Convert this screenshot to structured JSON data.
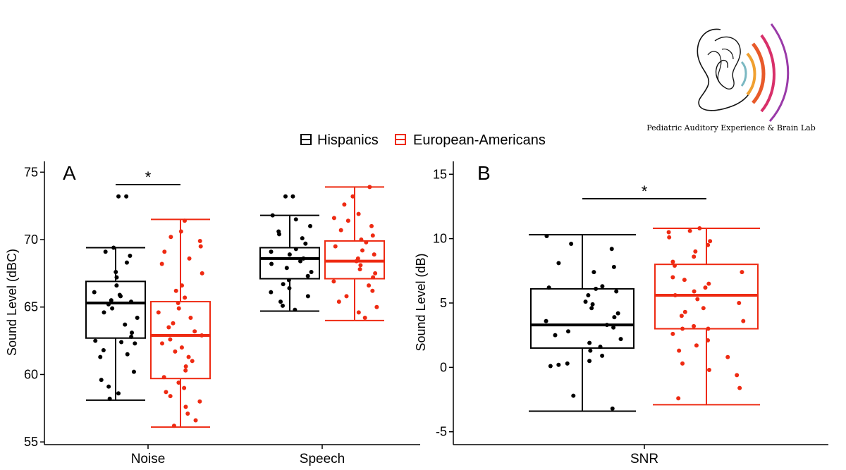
{
  "logo": {
    "lab_name": "Pediatric Auditory Experience & Brain Lab",
    "arc_colors": [
      "#7ab8c2",
      "#f0a030",
      "#e85a2a",
      "#d8306a",
      "#9a3aa8"
    ]
  },
  "legend": {
    "position": "top-center",
    "items": [
      {
        "label": "Hispanics",
        "color": "#000000"
      },
      {
        "label": "European-Americans",
        "color": "#ee2a12"
      }
    ]
  },
  "chart_data": [
    {
      "type": "box",
      "panel_label": "A",
      "ylabel": "Sound Level (dBC)",
      "ylim": [
        54.8,
        75.8
      ],
      "yticks": [
        55,
        60,
        65,
        70,
        75
      ],
      "categories": [
        "Noise",
        "Speech"
      ],
      "grid": false,
      "significance": [
        {
          "category": "Noise",
          "label": "*"
        }
      ],
      "series": [
        {
          "name": "Hispanics",
          "color": "#000000",
          "boxes": [
            {
              "whisker_low": 58.1,
              "q1": 62.7,
              "median": 65.3,
              "q3": 66.9,
              "whisker_high": 69.4,
              "points": [
                73.2,
                73.2,
                69.4,
                69.1,
                68.8,
                68.3,
                67.6,
                67.2,
                66.6,
                66.1,
                65.9,
                65.8,
                65.5,
                65.4,
                65.2,
                64.9,
                64.6,
                64.2,
                63.7,
                63.1,
                62.8,
                62.5,
                62.4,
                62.3,
                61.8,
                61.5,
                61.3,
                60.2,
                59.6,
                59.1,
                58.6,
                58.2
              ]
            },
            {
              "whisker_low": 64.7,
              "q1": 67.1,
              "median": 68.6,
              "q3": 69.4,
              "whisker_high": 71.8,
              "points": [
                73.2,
                73.2,
                71.8,
                71.5,
                71.0,
                70.6,
                70.4,
                70.1,
                69.7,
                69.3,
                69.1,
                68.9,
                68.6,
                68.4,
                68.2,
                67.9,
                67.6,
                67.3,
                67.0,
                66.7,
                66.4,
                66.1,
                65.8,
                65.4,
                65.1,
                64.8
              ]
            }
          ]
        },
        {
          "name": "European-Americans",
          "color": "#ee2a12",
          "boxes": [
            {
              "whisker_low": 56.1,
              "q1": 59.7,
              "median": 62.9,
              "q3": 65.4,
              "whisker_high": 71.5,
              "points": [
                71.4,
                70.6,
                70.2,
                69.9,
                69.5,
                69.1,
                68.6,
                68.2,
                67.5,
                66.6,
                66.2,
                65.7,
                65.3,
                64.9,
                64.6,
                64.2,
                63.8,
                63.5,
                63.2,
                62.9,
                62.6,
                62.3,
                62.0,
                61.7,
                61.3,
                61.0,
                60.6,
                60.3,
                59.8,
                59.4,
                59.0,
                58.7,
                58.4,
                58.0,
                57.6,
                57.1,
                56.6,
                56.2
              ]
            },
            {
              "whisker_low": 64.0,
              "q1": 67.1,
              "median": 68.4,
              "q3": 69.9,
              "whisker_high": 73.9,
              "points": [
                73.9,
                73.2,
                72.6,
                71.9,
                71.6,
                71.4,
                71.0,
                70.7,
                70.3,
                70.0,
                69.8,
                69.5,
                69.2,
                68.9,
                68.6,
                68.4,
                68.1,
                67.8,
                67.5,
                67.2,
                66.9,
                66.6,
                66.2,
                65.8,
                65.4,
                65.0,
                64.6,
                64.2
              ]
            }
          ]
        }
      ]
    },
    {
      "type": "box",
      "panel_label": "B",
      "ylabel": "Sound Level (dB)",
      "ylim": [
        -6,
        16
      ],
      "yticks": [
        -5,
        0,
        5,
        10,
        15
      ],
      "categories": [
        "SNR"
      ],
      "grid": false,
      "significance": [
        {
          "category": "SNR",
          "label": "*"
        }
      ],
      "series": [
        {
          "name": "Hispanics",
          "color": "#000000",
          "boxes": [
            {
              "whisker_low": -3.4,
              "q1": 1.5,
              "median": 3.3,
              "q3": 6.1,
              "whisker_high": 10.3,
              "points": [
                10.2,
                9.6,
                9.2,
                8.1,
                7.8,
                7.4,
                6.3,
                6.2,
                6.1,
                5.9,
                5.6,
                5.1,
                4.9,
                4.6,
                4.2,
                3.9,
                3.6,
                3.3,
                3.1,
                2.8,
                2.5,
                2.2,
                1.9,
                1.6,
                1.3,
                0.9,
                0.5,
                0.3,
                0.2,
                0.1,
                -2.2,
                -3.2
              ]
            }
          ]
        },
        {
          "name": "European-Americans",
          "color": "#ee2a12",
          "boxes": [
            {
              "whisker_low": -2.9,
              "q1": 3.0,
              "median": 5.6,
              "q3": 8.0,
              "whisker_high": 10.8,
              "points": [
                10.8,
                10.6,
                10.5,
                10.1,
                9.8,
                9.5,
                9.0,
                8.6,
                8.2,
                7.9,
                7.4,
                7.0,
                6.8,
                6.5,
                6.2,
                5.9,
                5.6,
                5.3,
                5.0,
                4.6,
                4.3,
                4.0,
                3.6,
                3.2,
                3.0,
                3.0,
                2.6,
                2.1,
                1.7,
                1.3,
                0.8,
                0.3,
                -0.2,
                -0.6,
                -1.6,
                -2.4
              ]
            }
          ]
        }
      ]
    }
  ]
}
